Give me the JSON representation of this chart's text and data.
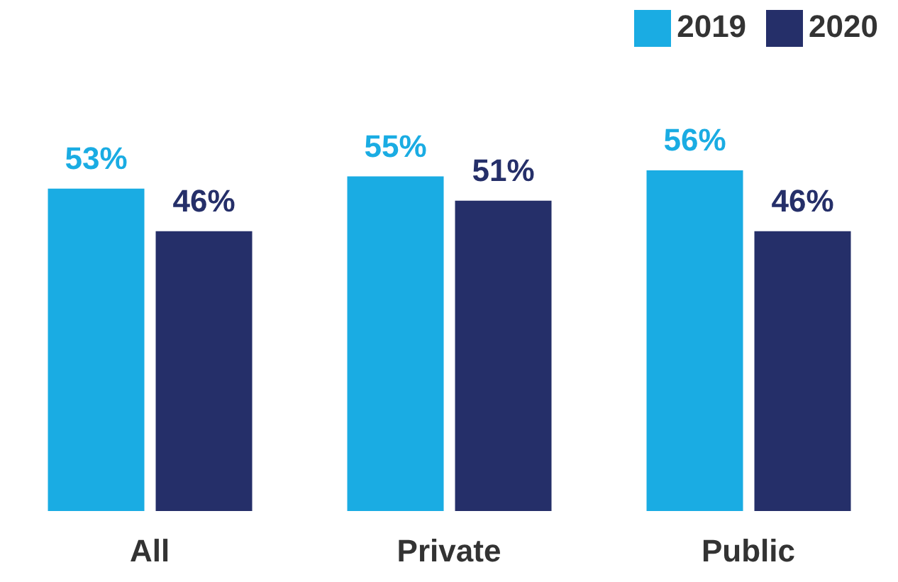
{
  "chart_data": {
    "type": "bar",
    "categories": [
      "All",
      "Private",
      "Public"
    ],
    "series": [
      {
        "name": "2019",
        "color": "#1aace3",
        "values": [
          53,
          55,
          56
        ],
        "value_labels": [
          "53%",
          "55%",
          "56%"
        ]
      },
      {
        "name": "2020",
        "color": "#252f69",
        "values": [
          46,
          51,
          46
        ],
        "value_labels": [
          "46%",
          "51%",
          "46%"
        ]
      }
    ],
    "legend": "top right",
    "grid": false
  }
}
